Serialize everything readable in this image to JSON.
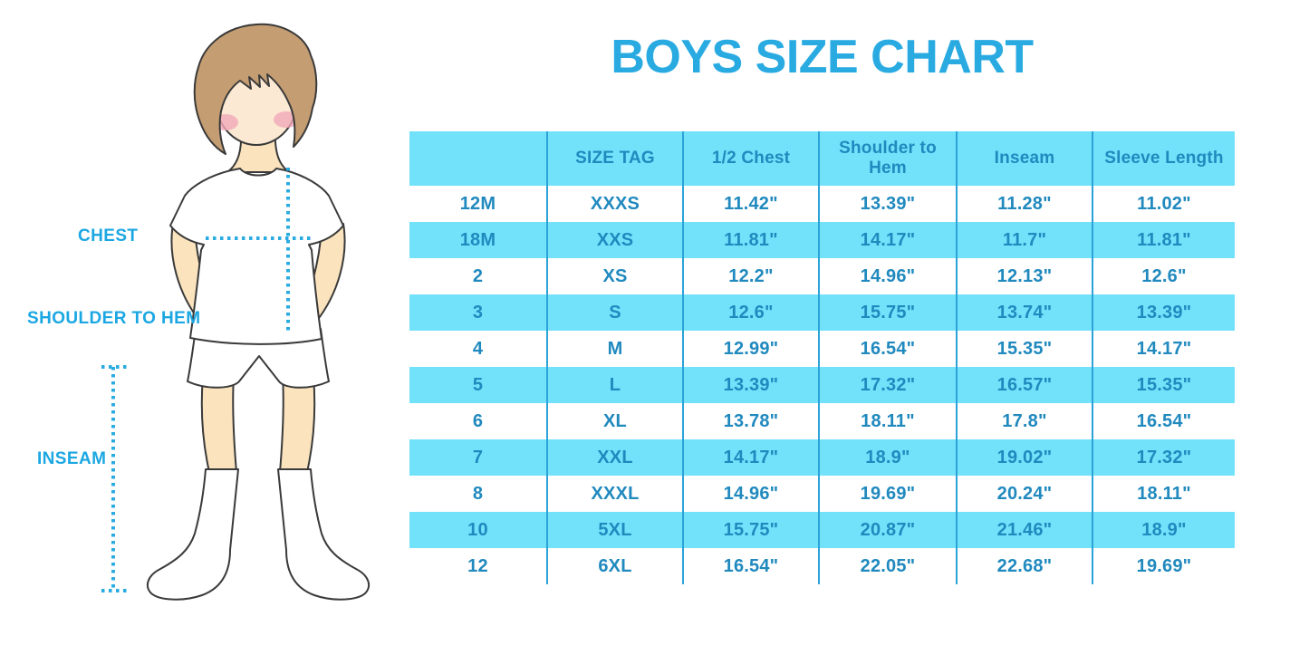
{
  "title": "BOYS SIZE CHART",
  "figure": {
    "labels": {
      "chest": "CHEST",
      "shoulder_to_hem": "SHOULDER TO HEM",
      "inseam": "INSEAM"
    }
  },
  "colors": {
    "accent_blue": "#29ABE2",
    "label_blue": "#1BA7E2",
    "table_text": "#2089BE",
    "cyan_fill": "#72E2FB",
    "divider": "#2BA3D8",
    "skin": "#FAE3BD",
    "skin_face": "#FBE9D3",
    "hair": "#C49D72",
    "blush": "#F2A9B9"
  },
  "chart_data": {
    "type": "table",
    "title": "BOYS SIZE CHART",
    "units": "inches",
    "columns": [
      "",
      "SIZE TAG",
      "1/2 Chest",
      "Shoulder to Hem",
      "Inseam",
      "Sleeve Length"
    ],
    "rows": [
      [
        "12M",
        "XXXS",
        "11.42\"",
        "13.39\"",
        "11.28\"",
        "11.02\""
      ],
      [
        "18M",
        "XXS",
        "11.81\"",
        "14.17\"",
        "11.7\"",
        "11.81\""
      ],
      [
        "2",
        "XS",
        "12.2\"",
        "14.96\"",
        "12.13\"",
        "12.6\""
      ],
      [
        "3",
        "S",
        "12.6\"",
        "15.75\"",
        "13.74\"",
        "13.39\""
      ],
      [
        "4",
        "M",
        "12.99\"",
        "16.54\"",
        "15.35\"",
        "14.17\""
      ],
      [
        "5",
        "L",
        "13.39\"",
        "17.32\"",
        "16.57\"",
        "15.35\""
      ],
      [
        "6",
        "XL",
        "13.78\"",
        "18.11\"",
        "17.8\"",
        "16.54\""
      ],
      [
        "7",
        "XXL",
        "14.17\"",
        "18.9\"",
        "19.02\"",
        "17.32\""
      ],
      [
        "8",
        "XXXL",
        "14.96\"",
        "19.69\"",
        "20.24\"",
        "18.11\""
      ],
      [
        "10",
        "5XL",
        "15.75\"",
        "20.87\"",
        "21.46\"",
        "18.9\""
      ],
      [
        "12",
        "6XL",
        "16.54\"",
        "22.05\"",
        "22.68\"",
        "19.69\""
      ]
    ],
    "layout": {
      "header_background": "cyan",
      "row_striping": "white/cyan alternating starting white",
      "column_dividers": true,
      "horizontal_borders": false
    }
  }
}
